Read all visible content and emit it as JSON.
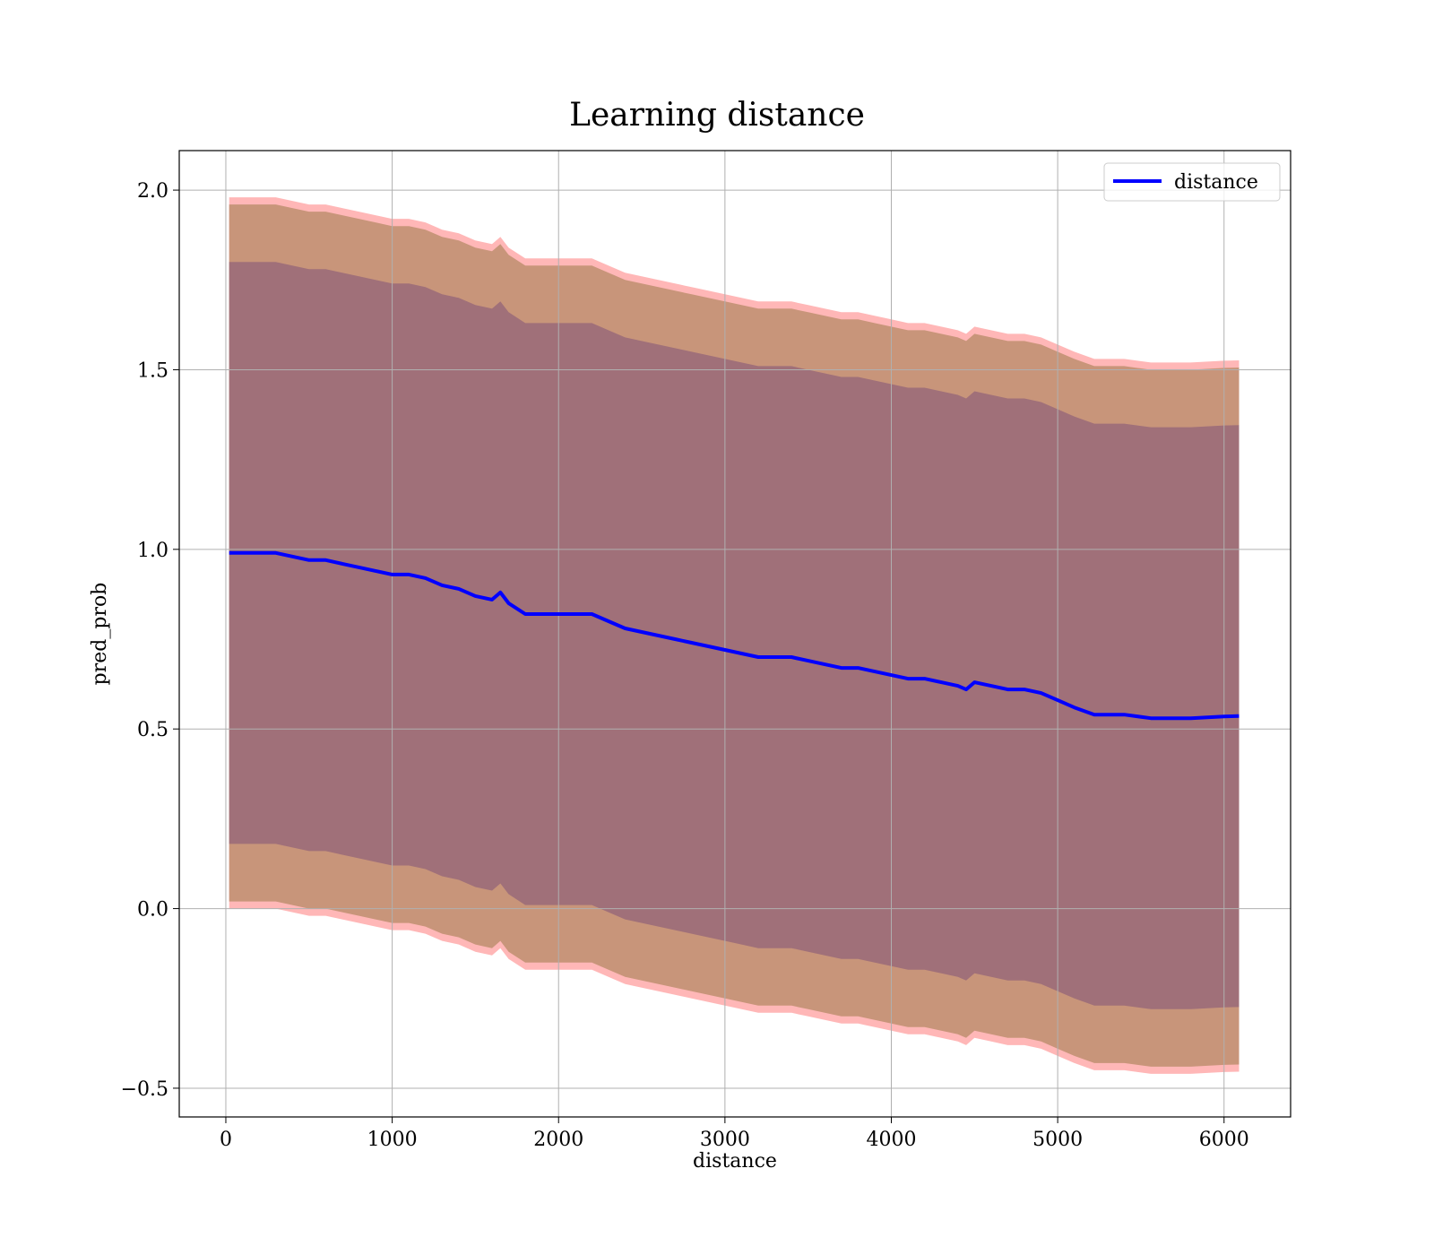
{
  "chart_data": {
    "type": "line",
    "title": "Learning distance",
    "xlabel": "distance",
    "ylabel": "pred_prob",
    "xlim": [
      -280,
      6400
    ],
    "ylim": [
      -0.58,
      2.11
    ],
    "xticks": [
      0,
      1000,
      2000,
      3000,
      4000,
      5000,
      6000
    ],
    "yticks": [
      -0.5,
      0.0,
      0.5,
      1.0,
      1.5,
      2.0
    ],
    "xtick_labels": [
      "0",
      "1000",
      "2000",
      "3000",
      "4000",
      "5000",
      "6000"
    ],
    "ytick_labels": [
      "−0.5",
      "0.0",
      "0.5",
      "1.0",
      "1.5",
      "2.0"
    ],
    "grid": true,
    "legend_position": "top-right",
    "x": [
      20,
      100,
      200,
      300,
      400,
      500,
      600,
      700,
      800,
      900,
      1000,
      1100,
      1200,
      1300,
      1400,
      1500,
      1600,
      1650,
      1700,
      1800,
      1900,
      2000,
      2100,
      2200,
      2300,
      2400,
      2500,
      2600,
      2700,
      2800,
      2900,
      3000,
      3100,
      3200,
      3300,
      3400,
      3500,
      3600,
      3700,
      3800,
      3900,
      4000,
      4100,
      4200,
      4300,
      4400,
      4450,
      4500,
      4600,
      4700,
      4800,
      4900,
      5000,
      5100,
      5220,
      5400,
      5560,
      5800,
      6000,
      6090
    ],
    "series": [
      {
        "name": "distance",
        "color": "#0000ff",
        "values": [
          0.99,
          0.99,
          0.99,
          0.99,
          0.98,
          0.97,
          0.97,
          0.96,
          0.95,
          0.94,
          0.93,
          0.93,
          0.92,
          0.9,
          0.89,
          0.87,
          0.86,
          0.88,
          0.85,
          0.82,
          0.82,
          0.82,
          0.82,
          0.82,
          0.8,
          0.78,
          0.77,
          0.76,
          0.75,
          0.74,
          0.73,
          0.72,
          0.71,
          0.7,
          0.7,
          0.7,
          0.69,
          0.68,
          0.67,
          0.67,
          0.66,
          0.65,
          0.64,
          0.64,
          0.63,
          0.62,
          0.61,
          0.63,
          0.62,
          0.61,
          0.61,
          0.6,
          0.58,
          0.56,
          0.54,
          0.54,
          0.53,
          0.53,
          0.535,
          0.536
        ]
      }
    ],
    "bands": [
      {
        "color": "#ff9f9f",
        "opacity": 0.75,
        "upper": [
          1.98,
          1.98,
          1.98,
          1.98,
          1.97,
          1.96,
          1.96,
          1.95,
          1.94,
          1.93,
          1.92,
          1.92,
          1.91,
          1.89,
          1.88,
          1.86,
          1.85,
          1.87,
          1.84,
          1.81,
          1.81,
          1.81,
          1.81,
          1.81,
          1.79,
          1.77,
          1.76,
          1.75,
          1.74,
          1.73,
          1.72,
          1.71,
          1.7,
          1.69,
          1.69,
          1.69,
          1.68,
          1.67,
          1.66,
          1.66,
          1.65,
          1.64,
          1.63,
          1.63,
          1.62,
          1.61,
          1.6,
          1.62,
          1.61,
          1.6,
          1.6,
          1.59,
          1.57,
          1.55,
          1.53,
          1.53,
          1.52,
          1.52,
          1.525,
          1.526
        ],
        "lower": [
          0.0,
          0.0,
          0.0,
          0.0,
          -0.01,
          -0.02,
          -0.02,
          -0.03,
          -0.04,
          -0.05,
          -0.06,
          -0.06,
          -0.07,
          -0.09,
          -0.1,
          -0.12,
          -0.13,
          -0.11,
          -0.14,
          -0.17,
          -0.17,
          -0.17,
          -0.17,
          -0.17,
          -0.19,
          -0.21,
          -0.22,
          -0.23,
          -0.24,
          -0.25,
          -0.26,
          -0.27,
          -0.28,
          -0.29,
          -0.29,
          -0.29,
          -0.3,
          -0.31,
          -0.32,
          -0.32,
          -0.33,
          -0.34,
          -0.35,
          -0.35,
          -0.36,
          -0.37,
          -0.38,
          -0.36,
          -0.37,
          -0.38,
          -0.38,
          -0.39,
          -0.41,
          -0.43,
          -0.45,
          -0.45,
          -0.46,
          -0.46,
          -0.455,
          -0.454
        ]
      },
      {
        "color": "#c8957a",
        "opacity": 1,
        "upper": [
          1.96,
          1.96,
          1.96,
          1.96,
          1.95,
          1.94,
          1.94,
          1.93,
          1.92,
          1.91,
          1.9,
          1.9,
          1.89,
          1.87,
          1.86,
          1.84,
          1.83,
          1.85,
          1.82,
          1.79,
          1.79,
          1.79,
          1.79,
          1.79,
          1.77,
          1.75,
          1.74,
          1.73,
          1.72,
          1.71,
          1.7,
          1.69,
          1.68,
          1.67,
          1.67,
          1.67,
          1.66,
          1.65,
          1.64,
          1.64,
          1.63,
          1.62,
          1.61,
          1.61,
          1.6,
          1.59,
          1.58,
          1.6,
          1.59,
          1.58,
          1.58,
          1.57,
          1.55,
          1.53,
          1.51,
          1.51,
          1.5,
          1.5,
          1.505,
          1.506
        ],
        "lower": [
          0.02,
          0.02,
          0.02,
          0.02,
          0.01,
          0.0,
          0.0,
          -0.01,
          -0.02,
          -0.03,
          -0.04,
          -0.04,
          -0.05,
          -0.07,
          -0.08,
          -0.1,
          -0.11,
          -0.09,
          -0.12,
          -0.15,
          -0.15,
          -0.15,
          -0.15,
          -0.15,
          -0.17,
          -0.19,
          -0.2,
          -0.21,
          -0.22,
          -0.23,
          -0.24,
          -0.25,
          -0.26,
          -0.27,
          -0.27,
          -0.27,
          -0.28,
          -0.29,
          -0.3,
          -0.3,
          -0.31,
          -0.32,
          -0.33,
          -0.33,
          -0.34,
          -0.35,
          -0.36,
          -0.34,
          -0.35,
          -0.36,
          -0.36,
          -0.37,
          -0.39,
          -0.41,
          -0.43,
          -0.43,
          -0.44,
          -0.44,
          -0.435,
          -0.434
        ]
      },
      {
        "color": "#a07079",
        "opacity": 1,
        "upper": [
          1.8,
          1.8,
          1.8,
          1.8,
          1.79,
          1.78,
          1.78,
          1.77,
          1.76,
          1.75,
          1.74,
          1.74,
          1.73,
          1.71,
          1.7,
          1.68,
          1.67,
          1.69,
          1.66,
          1.63,
          1.63,
          1.63,
          1.63,
          1.63,
          1.61,
          1.59,
          1.58,
          1.57,
          1.56,
          1.55,
          1.54,
          1.53,
          1.52,
          1.51,
          1.51,
          1.51,
          1.5,
          1.49,
          1.48,
          1.48,
          1.47,
          1.46,
          1.45,
          1.45,
          1.44,
          1.43,
          1.42,
          1.44,
          1.43,
          1.42,
          1.42,
          1.41,
          1.39,
          1.37,
          1.35,
          1.35,
          1.34,
          1.34,
          1.345,
          1.346
        ],
        "lower": [
          0.18,
          0.18,
          0.18,
          0.18,
          0.17,
          0.16,
          0.16,
          0.15,
          0.14,
          0.13,
          0.12,
          0.12,
          0.11,
          0.09,
          0.08,
          0.06,
          0.05,
          0.07,
          0.04,
          0.01,
          0.01,
          0.01,
          0.01,
          0.01,
          -0.01,
          -0.03,
          -0.04,
          -0.05,
          -0.06,
          -0.07,
          -0.08,
          -0.09,
          -0.1,
          -0.11,
          -0.11,
          -0.11,
          -0.12,
          -0.13,
          -0.14,
          -0.14,
          -0.15,
          -0.16,
          -0.17,
          -0.17,
          -0.18,
          -0.19,
          -0.2,
          -0.18,
          -0.19,
          -0.2,
          -0.2,
          -0.21,
          -0.23,
          -0.25,
          -0.27,
          -0.27,
          -0.28,
          -0.28,
          -0.275,
          -0.274
        ]
      }
    ]
  }
}
